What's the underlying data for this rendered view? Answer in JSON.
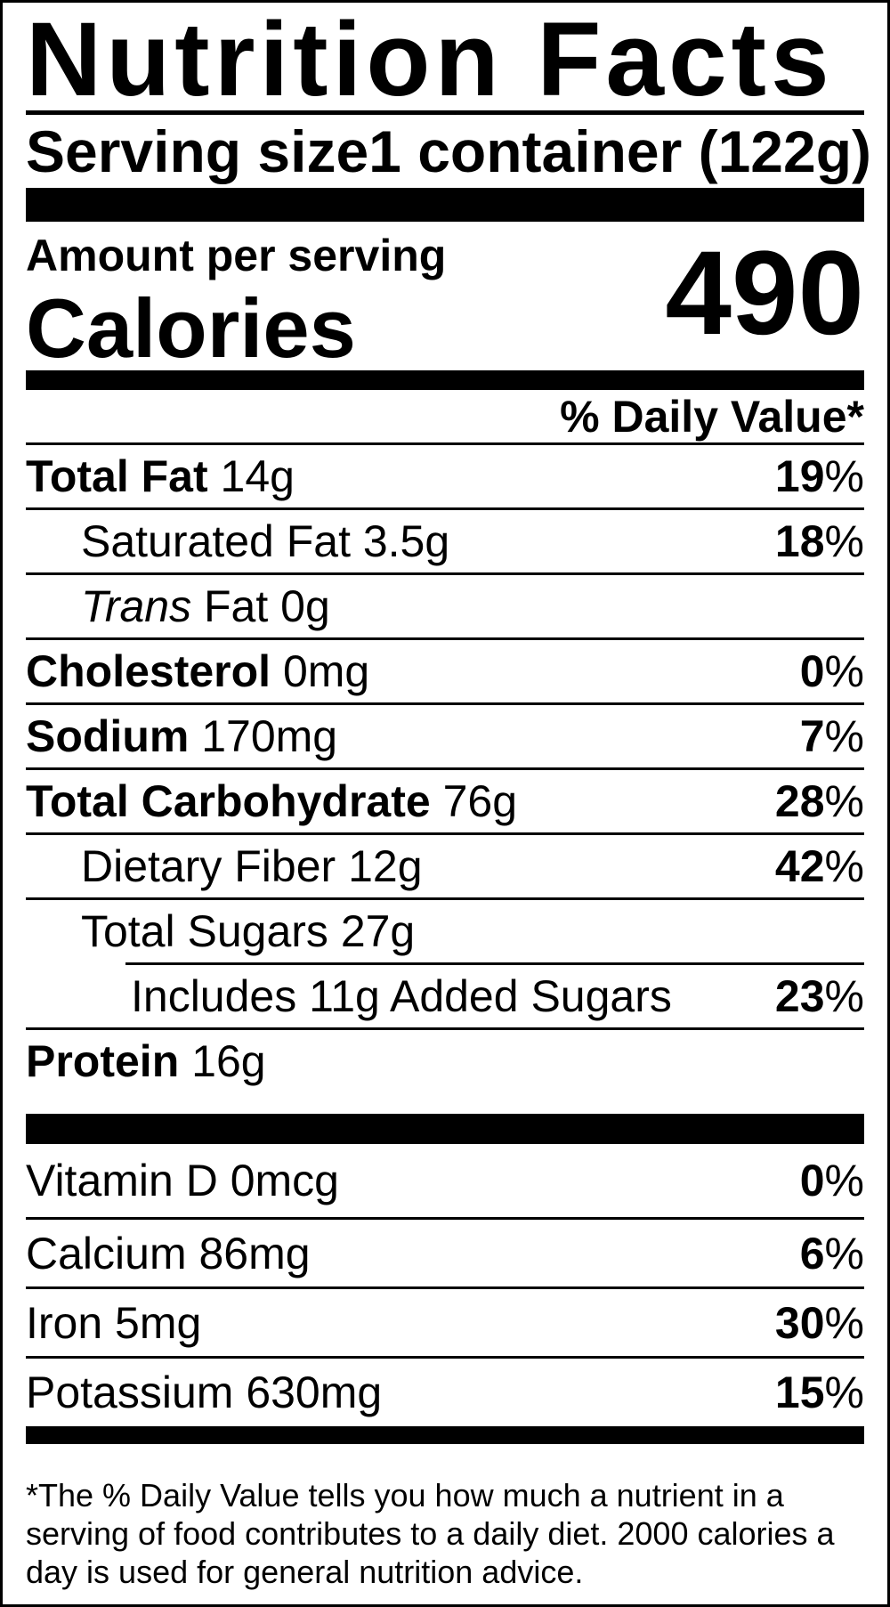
{
  "label": {
    "title": "Nutrition Facts",
    "serving_size_label": "Serving size",
    "serving_size_value": "1 container (122g)",
    "amount_per_serving": "Amount per serving",
    "calories_label": "Calories",
    "calories_value": "490",
    "daily_value_header": "% Daily Value*",
    "footnote": "*The % Daily Value tells you how much a nutrient in a serving of food contributes to a daily diet. 2000 calories a day is used for general nutrition advice.",
    "text_color": "#000000",
    "background_color": "#ffffff"
  },
  "rows": [
    {
      "strong": "Total Fat",
      "rest": " 14g",
      "dv_num": "19",
      "dv_sign": "%"
    },
    {
      "rest": "Saturated Fat 3.5g",
      "dv_num": "18",
      "dv_sign": "%"
    },
    {
      "em": "Trans",
      "rest": " Fat 0g"
    },
    {
      "strong": "Cholesterol",
      "rest": " 0mg",
      "dv_num": "0",
      "dv_sign": "%"
    },
    {
      "strong": "Sodium",
      "rest": " 170mg",
      "dv_num": "7",
      "dv_sign": "%"
    },
    {
      "strong": "Total Carbohydrate",
      "rest": " 76g",
      "dv_num": "28",
      "dv_sign": "%"
    },
    {
      "rest": "Dietary Fiber 12g",
      "dv_num": "42",
      "dv_sign": "%"
    },
    {
      "rest": "Total Sugars 27g"
    },
    {
      "rest": "Includes 11g Added Sugars",
      "dv_num": "23",
      "dv_sign": "%"
    },
    {
      "strong": "Protein",
      "rest": " 16g"
    }
  ],
  "micronutrients": [
    {
      "rest": "Vitamin D 0mcg",
      "dv_num": "0",
      "dv_sign": "%"
    },
    {
      "rest": "Calcium 86mg",
      "dv_num": "6",
      "dv_sign": "%"
    },
    {
      "rest": "Iron 5mg",
      "dv_num": "30",
      "dv_sign": "%"
    },
    {
      "rest": "Potassium 630mg",
      "dv_num": "15",
      "dv_sign": "%"
    }
  ]
}
